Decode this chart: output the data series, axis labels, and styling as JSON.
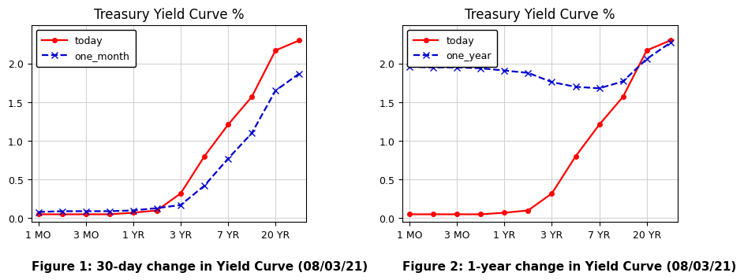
{
  "title": "Treasury Yield Curve %",
  "x_positions": [
    0,
    1,
    2,
    3,
    4,
    5,
    6,
    7,
    8,
    9,
    10,
    11
  ],
  "x_tick_positions": [
    0,
    2,
    4,
    6,
    8,
    10
  ],
  "x_tick_labels": [
    "1 MO",
    "3 MO",
    "1 YR",
    "3 YR",
    "7 YR",
    "20 YR"
  ],
  "today": [
    0.05,
    0.05,
    0.05,
    0.05,
    0.07,
    0.1,
    0.32,
    0.8,
    1.21,
    1.57,
    2.17,
    2.3
  ],
  "one_month": [
    0.08,
    0.09,
    0.09,
    0.09,
    0.1,
    0.13,
    0.17,
    0.42,
    0.77,
    1.1,
    1.65,
    1.87
  ],
  "one_year_comparison": [
    1.96,
    1.95,
    1.95,
    1.94,
    1.91,
    1.88,
    1.76,
    1.7,
    1.68,
    1.77,
    2.06,
    2.27
  ],
  "today_color": "#ff0000",
  "today_marker": "o",
  "comparison_color": "#0000cc",
  "comparison_linestyle": "--",
  "comparison_marker": "x",
  "fig1_caption": "Figure 1: 30-day change in Yield Curve (08/03/21)",
  "fig2_caption": "Figure 2: 1-year change in Yield Curve (08/03/21)",
  "legend1_label2": "one_month",
  "legend2_label2": "one_year",
  "legend_label1": "today",
  "ylim": [
    -0.05,
    2.5
  ],
  "yticks": [
    0.0,
    0.5,
    1.0,
    1.5,
    2.0
  ],
  "caption_fontsize": 11,
  "title_fontsize": 12,
  "legend_fontsize": 9,
  "tick_fontsize": 9,
  "fig_bgcolor": "#ffffff"
}
